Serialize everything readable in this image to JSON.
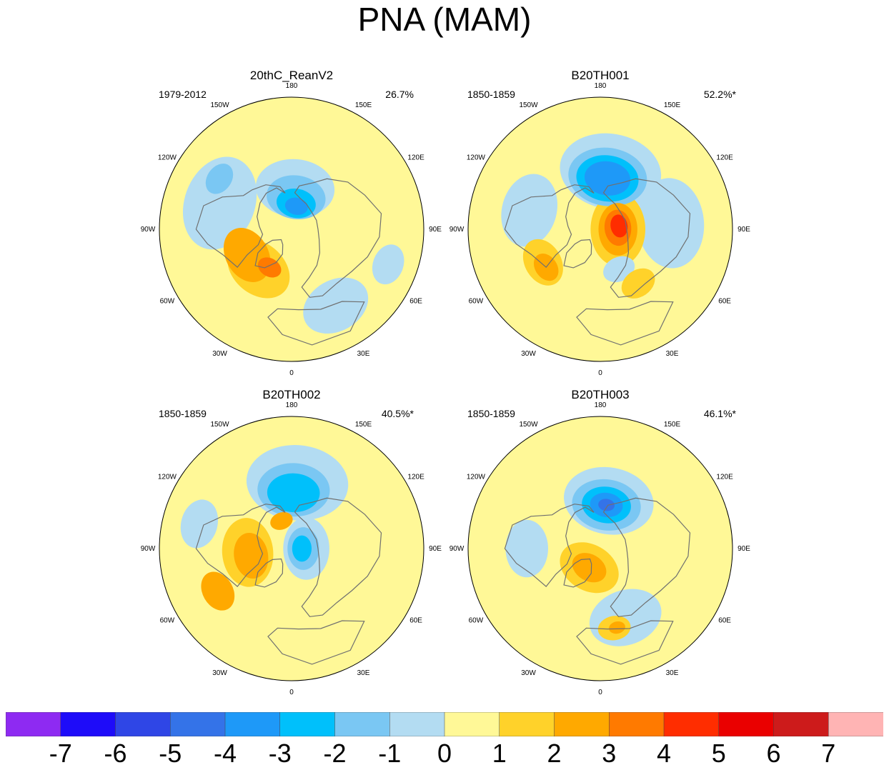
{
  "title": "PNA (MAM)",
  "longitude_labels": [
    "180",
    "150E",
    "120E",
    "90E",
    "60E",
    "30E",
    "0",
    "30W",
    "60W",
    "90W",
    "120W",
    "150W"
  ],
  "panels": [
    {
      "name": "20thC_ReanV2",
      "period": "1979-2012",
      "variance": "26.7%",
      "anomalies": [
        {
          "lon": 175,
          "colat": 28,
          "r": 48,
          "level": -1
        },
        {
          "lon": 172,
          "colat": 22,
          "r": 36,
          "level": -2
        },
        {
          "lon": 170,
          "colat": 18,
          "r": 24,
          "level": -3
        },
        {
          "lon": 168,
          "colat": 16,
          "r": 14,
          "level": -4
        },
        {
          "lon": 250,
          "colat": 52,
          "r": 58,
          "level": -1
        },
        {
          "lon": 235,
          "colat": 60,
          "r": 20,
          "level": -2
        },
        {
          "lon": 320,
          "colat": 35,
          "r": 42,
          "level": 1
        },
        {
          "lon": 300,
          "colat": 35,
          "r": 35,
          "level": 2
        },
        {
          "lon": 330,
          "colat": 30,
          "r": 15,
          "level": 3
        },
        {
          "lon": 30,
          "colat": 60,
          "r": 42,
          "level": -1
        },
        {
          "lon": 70,
          "colat": 70,
          "r": 25,
          "level": -1
        }
      ]
    },
    {
      "name": "B20TH001",
      "period": "1850-1859",
      "variance": "52.2%*",
      "anomalies": [
        {
          "lon": 170,
          "colat": 40,
          "r": 62,
          "level": -1
        },
        {
          "lon": 172,
          "colat": 36,
          "r": 48,
          "level": -2
        },
        {
          "lon": 172,
          "colat": 35,
          "r": 38,
          "level": -3
        },
        {
          "lon": 172,
          "colat": 35,
          "r": 28,
          "level": -4
        },
        {
          "lon": 255,
          "colat": 50,
          "r": 45,
          "level": -1
        },
        {
          "lon": 95,
          "colat": 48,
          "r": 55,
          "level": -1
        },
        {
          "lon": 90,
          "colat": 12,
          "r": 45,
          "level": 1
        },
        {
          "lon": 90,
          "colat": 12,
          "r": 32,
          "level": 2
        },
        {
          "lon": 95,
          "colat": 12,
          "r": 22,
          "level": 3
        },
        {
          "lon": 100,
          "colat": 13,
          "r": 14,
          "level": 4
        },
        {
          "lon": 300,
          "colat": 45,
          "r": 30,
          "level": 1
        },
        {
          "lon": 305,
          "colat": 45,
          "r": 18,
          "level": 2
        },
        {
          "lon": 25,
          "colat": 30,
          "r": 20,
          "level": -1
        },
        {
          "lon": 35,
          "colat": 45,
          "r": 22,
          "level": 1
        }
      ]
    },
    {
      "name": "B20TH002",
      "period": "1850-1859",
      "variance": "40.5%*",
      "anomalies": [
        {
          "lon": 175,
          "colat": 45,
          "r": 62,
          "level": -1
        },
        {
          "lon": 178,
          "colat": 40,
          "r": 44,
          "level": -2
        },
        {
          "lon": 178,
          "colat": 38,
          "r": 32,
          "level": -3
        },
        {
          "lon": 90,
          "colat": 10,
          "r": 38,
          "level": -1
        },
        {
          "lon": 90,
          "colat": 8,
          "r": 26,
          "level": -2
        },
        {
          "lon": 90,
          "colat": 7,
          "r": 16,
          "level": -3
        },
        {
          "lon": 275,
          "colat": 30,
          "r": 42,
          "level": 1
        },
        {
          "lon": 280,
          "colat": 28,
          "r": 28,
          "level": 2
        },
        {
          "lon": 200,
          "colat": 20,
          "r": 14,
          "level": 2
        },
        {
          "lon": 300,
          "colat": 58,
          "r": 25,
          "level": 2
        },
        {
          "lon": 255,
          "colat": 65,
          "r": 30,
          "level": -1
        }
      ]
    },
    {
      "name": "B20TH003",
      "period": "1850-1859",
      "variance": "46.1%*",
      "anomalies": [
        {
          "lon": 170,
          "colat": 33,
          "r": 55,
          "level": -1
        },
        {
          "lon": 172,
          "colat": 30,
          "r": 42,
          "level": -2
        },
        {
          "lon": 172,
          "colat": 30,
          "r": 30,
          "level": -3
        },
        {
          "lon": 172,
          "colat": 30,
          "r": 20,
          "level": -4
        },
        {
          "lon": 172,
          "colat": 30,
          "r": 10,
          "level": -5
        },
        {
          "lon": 330,
          "colat": 15,
          "r": 38,
          "level": 1
        },
        {
          "lon": 330,
          "colat": 15,
          "r": 22,
          "level": 2
        },
        {
          "lon": 20,
          "colat": 50,
          "r": 45,
          "level": -1
        },
        {
          "lon": 10,
          "colat": 55,
          "r": 20,
          "level": 1
        },
        {
          "lon": 12,
          "colat": 55,
          "r": 10,
          "level": 2
        },
        {
          "lon": 270,
          "colat": 50,
          "r": 35,
          "level": -1
        }
      ]
    }
  ],
  "colorbar": {
    "levels": [
      "-7",
      "-6",
      "-5",
      "-4",
      "-3",
      "-2",
      "-1",
      "0",
      "1",
      "2",
      "3",
      "4",
      "5",
      "6",
      "7"
    ],
    "colors": [
      "#8e2af2",
      "#1e0cf9",
      "#2f46e6",
      "#3473e8",
      "#1e99f8",
      "#00c0fb",
      "#7ac7f3",
      "#b3dcf2",
      "#fff897",
      "#ffd22a",
      "#ffa900",
      "#ff7a00",
      "#ff2d00",
      "#ea0000",
      "#cd1b1b",
      "#ffb4b4"
    ]
  },
  "colors": {
    "background_zero": "#fff897",
    "coastline": "#707070"
  }
}
